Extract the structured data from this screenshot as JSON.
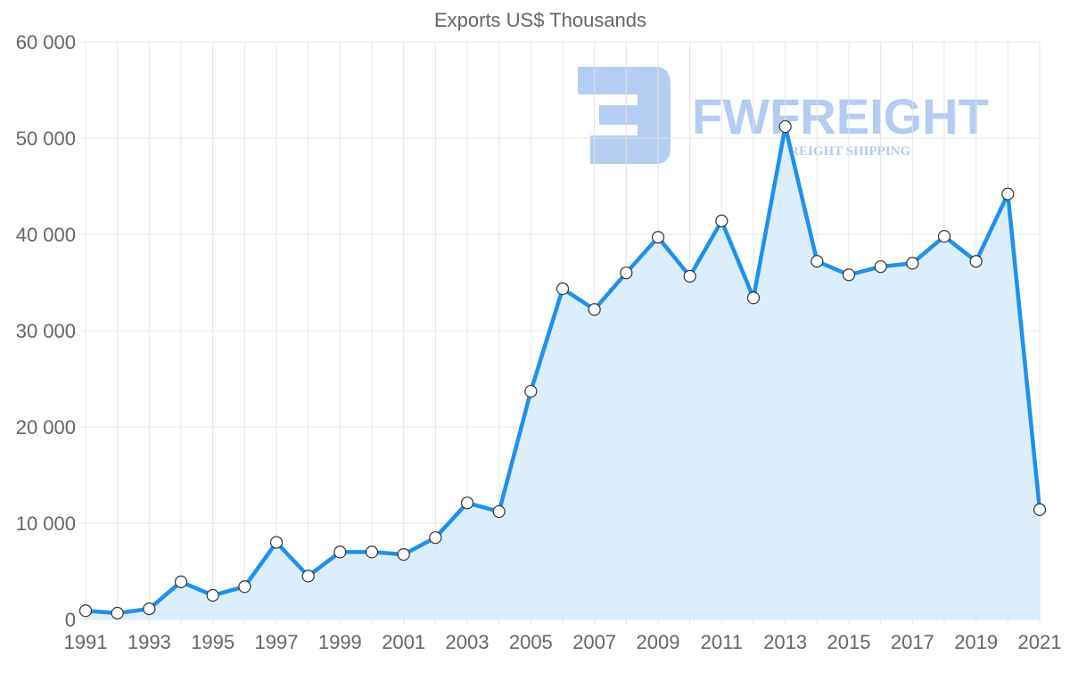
{
  "chart_data": {
    "type": "area",
    "title": "Exports US$ Thousands",
    "xlabel": "",
    "ylabel": "",
    "x": [
      1991,
      1992,
      1993,
      1994,
      1995,
      1996,
      1997,
      1998,
      1999,
      2000,
      2001,
      2002,
      2003,
      2004,
      2005,
      2006,
      2007,
      2008,
      2009,
      2010,
      2011,
      2012,
      2013,
      2014,
      2015,
      2016,
      2017,
      2018,
      2019,
      2020,
      2021
    ],
    "series": [
      {
        "name": "Exports US$ Thousands",
        "values": [
          900,
          650,
          1100,
          3900,
          2500,
          3400,
          8000,
          4500,
          7000,
          7000,
          6750,
          8500,
          12100,
          11200,
          23700,
          34350,
          32200,
          36000,
          39700,
          35650,
          41400,
          33400,
          51200,
          37200,
          35800,
          36650,
          37000,
          39800,
          37200,
          44200,
          11400
        ]
      }
    ],
    "ylim": [
      0,
      60000
    ],
    "yticks": [
      0,
      10000,
      20000,
      30000,
      40000,
      50000,
      60000
    ],
    "ytick_labels": [
      "0",
      "10 000",
      "20 000",
      "30 000",
      "40 000",
      "50 000",
      "60 000"
    ],
    "xtick_labels": [
      "1991",
      "1993",
      "1995",
      "1997",
      "1999",
      "2001",
      "2003",
      "2005",
      "2007",
      "2009",
      "2011",
      "2013",
      "2015",
      "2017",
      "2019",
      "2021"
    ],
    "grid": true,
    "legend": "none",
    "colors": {
      "line": "#1e90f0",
      "fill": "#d8ebfc",
      "grid": "#e4e4e4",
      "watermark": "#a9c4f0"
    }
  },
  "watermark": {
    "brand": "FWFREIGHT",
    "tagline": "FREIGHT SHIPPING"
  }
}
